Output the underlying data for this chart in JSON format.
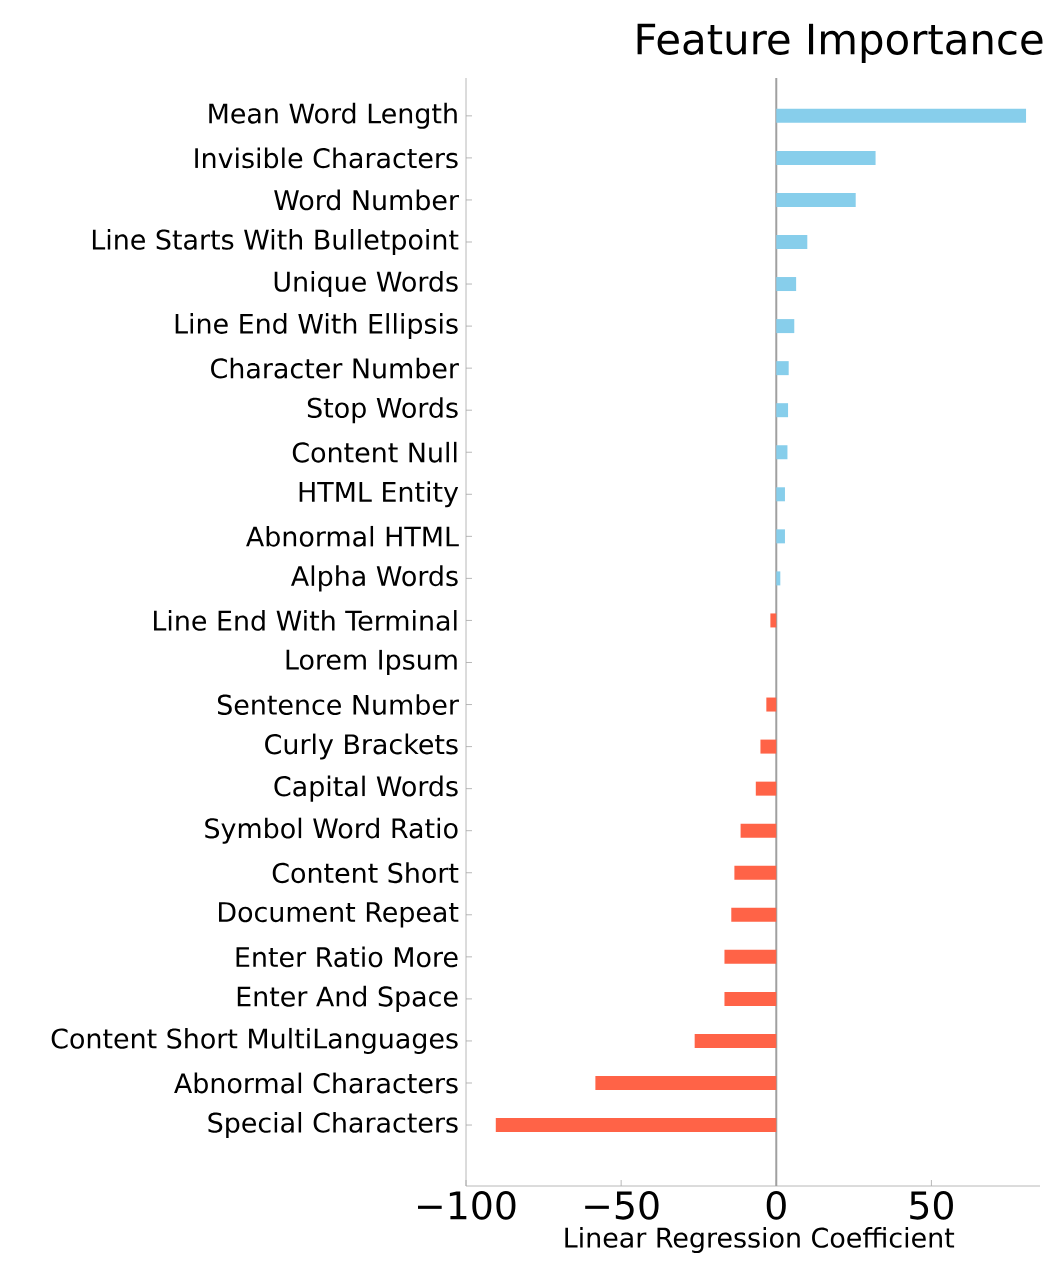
{
  "chart_data": {
    "type": "bar",
    "orientation": "horizontal",
    "title": "Feature Importance",
    "xlabel": "Linear Regression Coefficient",
    "categories": [
      "Mean Word Length",
      "Invisible Characters",
      "Word Number",
      "Line Starts With Bulletpoint",
      "Unique Words",
      "Line End With Ellipsis",
      "Character Number",
      "Stop Words",
      "Content Null",
      "HTML Entity",
      "Abnormal HTML",
      "Alpha Words",
      "Line End With Terminal",
      "Lorem Ipsum",
      "Sentence Number",
      "Curly Brackets",
      "Capital Words",
      "Symbol Word Ratio",
      "Content Short",
      "Document Repeat",
      "Enter Ratio More",
      "Enter And Space",
      "Content Short MultiLanguages",
      "Abnormal Characters",
      "Special Characters"
    ],
    "values": [
      80.5,
      32,
      25.6,
      10,
      6.4,
      5.8,
      4,
      3.8,
      3.6,
      2.8,
      2.8,
      1.3,
      -1.9,
      0,
      -3.2,
      -5.1,
      -6.6,
      -11.5,
      -13.5,
      -14.5,
      -16.7,
      -16.7,
      -26.3,
      -58.3,
      -90.4
    ],
    "colors": [
      "#87ceeb",
      "#87ceeb",
      "#87ceeb",
      "#87ceeb",
      "#87ceeb",
      "#87ceeb",
      "#87ceeb",
      "#87ceeb",
      "#87ceeb",
      "#87ceeb",
      "#87ceeb",
      "#87ceeb",
      "#ff6347",
      "#ff6347",
      "#ff6347",
      "#ff6347",
      "#ff6347",
      "#ff6347",
      "#ff6347",
      "#ff6347",
      "#ff6347",
      "#ff6347",
      "#ff6347",
      "#ff6347",
      "#ff6347"
    ],
    "xlim": [
      -100,
      85
    ],
    "xticks": [
      {
        "value": -100,
        "label": "−100"
      },
      {
        "value": -50,
        "label": "−50"
      },
      0,
      50
    ],
    "ref_lines": [
      {
        "axis": "x",
        "value": 0,
        "color": "#a0a0a0"
      }
    ],
    "grid": false
  }
}
